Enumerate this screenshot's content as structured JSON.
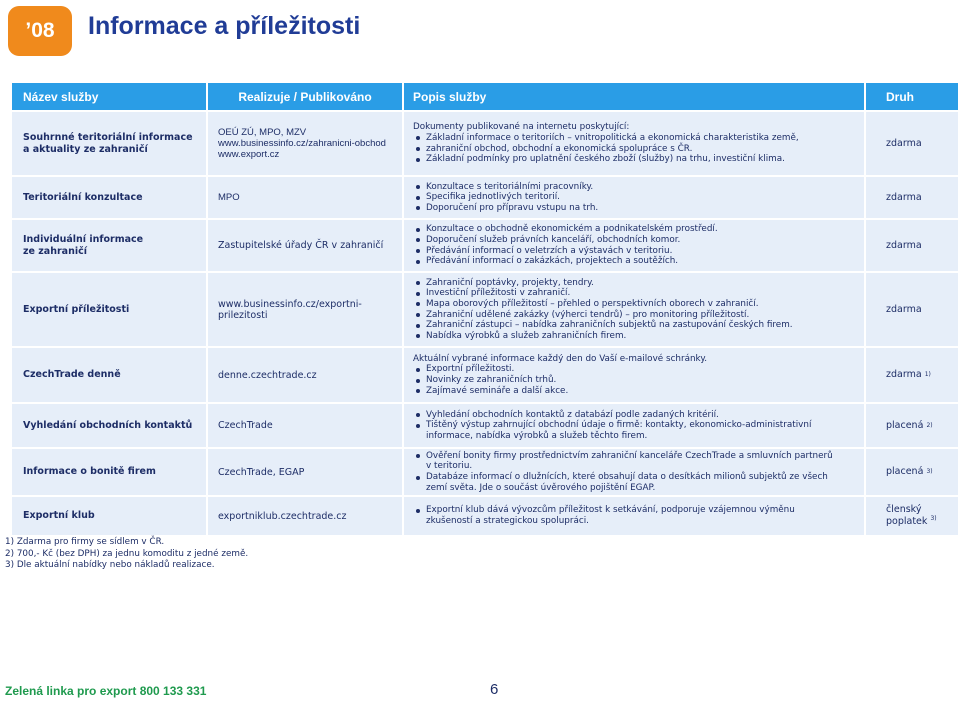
{
  "header": {
    "chapter": "’08",
    "title": "Informace a příležitosti"
  },
  "table": {
    "columns": [
      "Název služby",
      "Realizuje / Publikováno",
      "Popis služby",
      "Druh"
    ],
    "rows": [
      {
        "name": [
          "Souhrnné teritoriální informace",
          "a aktuality ze zahraničí"
        ],
        "provider": [
          "OEÚ ZÚ, MPO, MZV",
          "www.businessinfo.cz/zahranicni-obchod",
          "www.export.cz"
        ],
        "intro": "Dokumenty publikované na internetu poskytující:",
        "bullets": [
          "Základní informace o teritoriích – vnitropolitická a ekonomická charakteristika země,",
          "zahraniční obchod, obchodní a ekonomická spolupráce s ČR.",
          "Základní podmínky pro uplatnění českého zboží (služby) na trhu, investiční klima."
        ],
        "type": "zdarma",
        "note": ""
      },
      {
        "name": [
          "Teritoriální konzultace"
        ],
        "provider": [
          "MPO"
        ],
        "intro": "",
        "bullets": [
          "Konzultace s teritoriálními pracovníky.",
          "Specifika jednotlivých teritorií.",
          "Doporučení pro přípravu vstupu na trh."
        ],
        "type": "zdarma",
        "note": ""
      },
      {
        "name": [
          "Individuální informace",
          "ze zahraničí"
        ],
        "provider": [
          "Zastupitelské úřady ČR v zahraničí"
        ],
        "intro": "",
        "bullets": [
          "Konzultace o obchodně ekonomickém a podnikatelském prostředí.",
          "Doporučení služeb právních kanceláří, obchodních komor.",
          "Předávání informací o veletrzích a výstavách v teritoriu.",
          "Předávání informací o zakázkách, projektech a soutěžích."
        ],
        "type": "zdarma",
        "note": ""
      },
      {
        "name": [
          "Exportní příležitosti"
        ],
        "provider": [
          "www.businessinfo.cz/exportni-prilezitosti"
        ],
        "intro": "",
        "bullets": [
          "Zahraniční poptávky, projekty, tendry.",
          "Investiční příležitosti v zahraničí.",
          "Mapa oborových příležitostí – přehled o perspektivních oborech v zahraničí.",
          "Zahraniční udělené zakázky (výherci tendrů) – pro monitoring příležitostí.",
          "Zahraniční zástupci – nabídka zahraničních subjektů na zastupování českých firem.",
          "Nabídka výrobků a služeb zahraničních firem."
        ],
        "type": "zdarma",
        "note": ""
      },
      {
        "name": [
          "CzechTrade denně"
        ],
        "provider": [
          "denne.czechtrade.cz"
        ],
        "intro": "Aktuální vybrané informace každý den do Vaší e-mailové schránky.",
        "bullets": [
          "Exportní příležitosti.",
          "Novinky ze zahraničních trhů.",
          "Zajímavé semináře a další akce."
        ],
        "type": "zdarma",
        "note": "1)"
      },
      {
        "name": [
          "Vyhledání obchodních kontaktů"
        ],
        "provider": [
          "CzechTrade"
        ],
        "intro": "",
        "bullets": [
          "Vyhledání obchodních kontaktů z databází podle zadaných kritérií.",
          "Tištěný výstup zahrnující obchodní údaje o firmě: kontakty, ekonomicko-administrativní",
          "informace, nabídka výrobků a služeb těchto firem."
        ],
        "type": "placená",
        "note": "2)"
      },
      {
        "name": [
          "Informace o bonitě firem"
        ],
        "provider": [
          "CzechTrade, EGAP"
        ],
        "intro": "",
        "bullets": [
          "Ověření bonity firmy prostřednictvím zahraniční kanceláře CzechTrade a smluvních partnerů",
          "v teritoriu.",
          "Databáze informací o dlužnících, které obsahují data o desítkách milionů subjektů ze všech",
          "zemí světa. Jde o součást úvěrového pojištění EGAP."
        ],
        "type": "placená",
        "note": "3)"
      },
      {
        "name": [
          "Exportní klub"
        ],
        "provider": [
          "exportniklub.czechtrade.cz"
        ],
        "intro": "",
        "bullets": [
          "Exportní klub dává vývozcům příležitost k setkávání, podporuje vzájemnou výměnu",
          "zkušeností a strategickou spolupráci."
        ],
        "type": "členský",
        "type2": "poplatek",
        "note": "3)"
      }
    ]
  },
  "notes": [
    "1) Zdarma pro firmy se sídlem v ČR.",
    "2) 700,- Kč (bez DPH) za jednu komoditu z jedné země.",
    "3) Dle aktuální nabídky nebo nákladů realizace."
  ],
  "footer": {
    "hotline": "Zelená linka pro export  800 133 331",
    "page": "6"
  },
  "colors": {
    "accent_orange": "#f08a1c",
    "header_blue": "#2a9de6",
    "row_bg": "#e6eef9",
    "text_navy": "#1d2d66",
    "footer_green": "#1f9a4e"
  }
}
